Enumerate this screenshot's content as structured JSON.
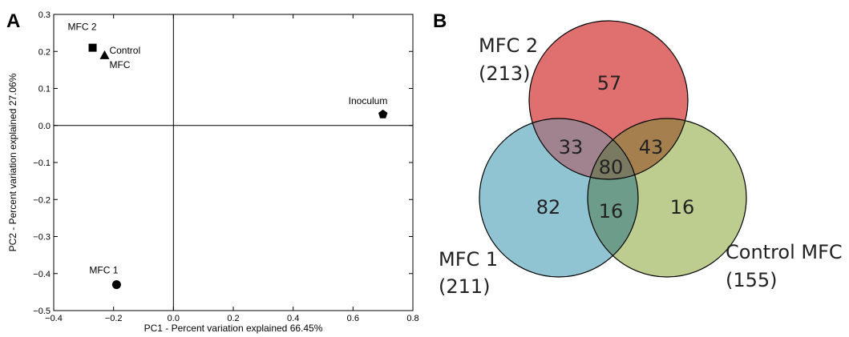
{
  "panel_a_letter": "A",
  "panel_b_letter": "B",
  "chart_data": [
    {
      "type": "scatter",
      "xlabel": "PC1 - Percent variation explained 66.45%",
      "ylabel": "PC2 - Percent variation explained 27.06%",
      "xlim": [
        -0.4,
        0.8
      ],
      "ylim": [
        -0.5,
        0.3
      ],
      "xticks": [
        "−0.4",
        "−0.2",
        "0.0",
        "0.2",
        "0.4",
        "0.6",
        "0.8"
      ],
      "yticks": [
        "0.3",
        "0.2",
        "0.1",
        "0.0",
        "−0.1",
        "−0.2",
        "−0.3",
        "−0.4",
        "−0.5"
      ],
      "grid": false,
      "points": [
        {
          "label": "MFC 2",
          "x": -0.27,
          "y": 0.21,
          "marker": "square"
        },
        {
          "label_lines": [
            "Control",
            "MFC"
          ],
          "x": -0.23,
          "y": 0.19,
          "marker": "triangle"
        },
        {
          "label": "Inoculum",
          "x": 0.7,
          "y": 0.03,
          "marker": "pentagon"
        },
        {
          "label": "MFC 1",
          "x": -0.19,
          "y": -0.43,
          "marker": "circle"
        }
      ]
    },
    {
      "type": "venn",
      "sets": [
        {
          "name": "MFC 2",
          "total": "(213)",
          "color": "#e0706f"
        },
        {
          "name": "MFC 1",
          "total": "(211)",
          "color": "#90c4d2"
        },
        {
          "name": "Control MFC",
          "total": "(155)",
          "color": "#bccd8f"
        }
      ],
      "regions": {
        "mfc2_only": "57",
        "mfc1_only": "82",
        "control_only": "16",
        "mfc2_mfc1": "33",
        "mfc2_control": "43",
        "mfc1_control": "16",
        "all_three": "80"
      },
      "overlap_colors": {
        "mfc2_mfc1": "#a1838f",
        "mfc2_control": "#a5804e",
        "mfc1_control": "#6e9c8a",
        "all_three": "#7a7a63"
      }
    }
  ]
}
